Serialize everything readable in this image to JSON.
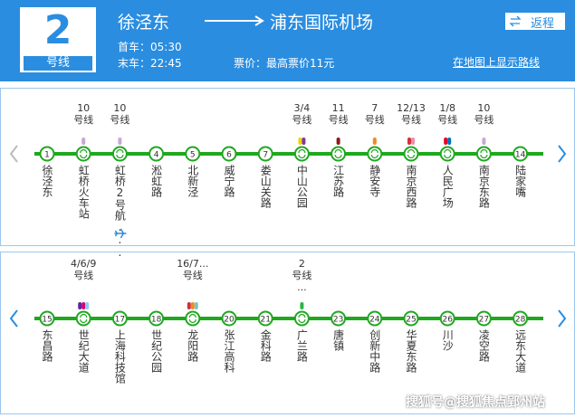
{
  "header": {
    "line_number": "2",
    "line_unit": "号线",
    "origin": "徐泾东",
    "destination": "浦东国际机场",
    "first_train": "首车：05:30",
    "last_train": "末车：22:45",
    "fare": "票价：最高票价11元",
    "return_button": "返程",
    "map_link": "在地图上显示路线"
  },
  "rows": [
    {
      "stations": [
        {
          "number": "1",
          "name": "徐泾东"
        },
        {
          "name": "虹桥火车站",
          "transfer": [
            "10",
            "号线"
          ],
          "colors": [
            "#c9a7d3"
          ]
        },
        {
          "name": "虹桥2号航...",
          "transfer": [
            "10",
            "号线"
          ],
          "colors": [
            "#c9a7d3"
          ],
          "airport": true
        },
        {
          "number": "4",
          "name": "淞虹路"
        },
        {
          "number": "5",
          "name": "北新泾"
        },
        {
          "number": "6",
          "name": "威宁路"
        },
        {
          "number": "7",
          "name": "娄山关路"
        },
        {
          "name": "中山公园",
          "transfer": [
            "3/4",
            "号线"
          ],
          "colors": [
            "#f2d300",
            "#7d3c98"
          ]
        },
        {
          "name": "江苏路",
          "transfer": [
            "11",
            "号线"
          ],
          "colors": [
            "#8b1a1a"
          ]
        },
        {
          "name": "静安寺",
          "transfer": [
            "7",
            "号线"
          ],
          "colors": [
            "#f08a24"
          ]
        },
        {
          "name": "南京西路",
          "transfer": [
            "12/13",
            "号线"
          ],
          "colors": [
            "#d0313a",
            "#e88fb0"
          ]
        },
        {
          "name": "人民广场",
          "transfer": [
            "1/8",
            "号线"
          ],
          "colors": [
            "#e3002b",
            "#0072bc"
          ]
        },
        {
          "name": "南京东路",
          "transfer": [
            "10",
            "号线"
          ],
          "colors": [
            "#c9a7d3"
          ]
        },
        {
          "number": "14",
          "name": "陆家嘴"
        }
      ]
    },
    {
      "stations": [
        {
          "number": "15",
          "name": "东昌路"
        },
        {
          "name": "世纪大道",
          "transfer": [
            "4/6/9",
            "号线"
          ],
          "colors": [
            "#5f259f",
            "#d6006f",
            "#87cefa"
          ]
        },
        {
          "number": "17",
          "name": "上海科技馆"
        },
        {
          "number": "18",
          "name": "世纪公园"
        },
        {
          "name": "龙阳路",
          "transfer": [
            "16/7...",
            "号线"
          ],
          "colors": [
            "#d0313a",
            "#f08a24",
            "#77c8c7"
          ]
        },
        {
          "number": "20",
          "name": "张江高科"
        },
        {
          "number": "21",
          "name": "金科路"
        },
        {
          "name": "广兰路",
          "transfer": [
            "2",
            "号线",
            "..."
          ],
          "colors": [
            "#2cb34a"
          ]
        },
        {
          "number": "23",
          "name": "唐镇"
        },
        {
          "number": "24",
          "name": "创新中路"
        },
        {
          "number": "25",
          "name": "华夏东路"
        },
        {
          "number": "26",
          "name": "川沙"
        },
        {
          "number": "27",
          "name": "凌空路"
        },
        {
          "number": "28",
          "name": "远东大道"
        }
      ]
    }
  ],
  "watermark": "搜狐号@搜狐焦点郢州站"
}
